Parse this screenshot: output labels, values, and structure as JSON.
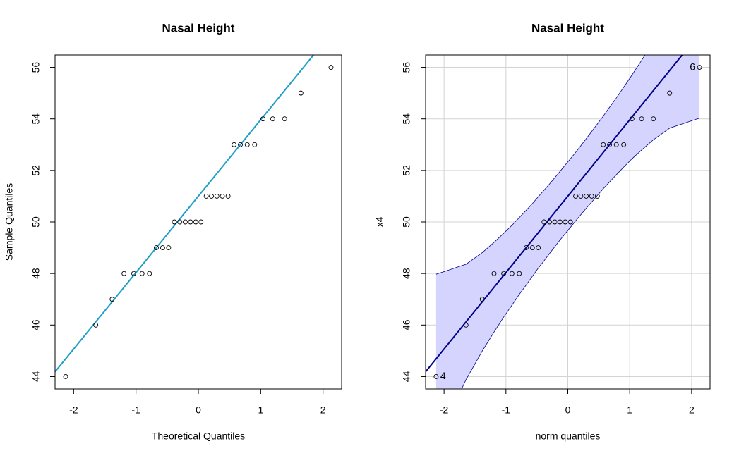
{
  "chart_data": [
    {
      "type": "scatter",
      "title": "Nasal Height",
      "x_label": "Theoretical Quantiles",
      "y_label": "Sample Quantiles",
      "x": [
        -2.128,
        -1.645,
        -1.383,
        -1.192,
        -1.036,
        -0.903,
        -0.784,
        -0.674,
        -0.573,
        -0.477,
        -0.385,
        -0.297,
        -0.21,
        -0.126,
        -0.042,
        0.042,
        0.126,
        0.21,
        0.297,
        0.385,
        0.477,
        0.573,
        0.674,
        0.784,
        0.903,
        1.036,
        1.192,
        1.383,
        1.645,
        2.128
      ],
      "values": [
        44,
        46,
        47,
        48,
        48,
        48,
        48,
        49,
        49,
        49,
        50,
        50,
        50,
        50,
        50,
        50,
        51,
        51,
        51,
        51,
        51,
        53,
        53,
        53,
        53,
        54,
        54,
        54,
        55,
        56
      ],
      "reference_line": {
        "intercept": 51,
        "slope": 2.965,
        "color": "#1e9ec9"
      },
      "xlim": [
        -2.298,
        2.298
      ],
      "ylim": [
        43.52,
        56.48
      ],
      "xticks": [
        -2,
        -1,
        0,
        1,
        2
      ],
      "yticks": [
        44,
        46,
        48,
        50,
        52,
        54,
        56
      ],
      "grid": false
    },
    {
      "type": "scatter",
      "title": "Nasal Height",
      "x_label": "norm quantiles",
      "y_label": "x4",
      "x": [
        -2.128,
        -1.645,
        -1.383,
        -1.192,
        -1.036,
        -0.903,
        -0.784,
        -0.674,
        -0.573,
        -0.477,
        -0.385,
        -0.297,
        -0.21,
        -0.126,
        -0.042,
        0.042,
        0.126,
        0.21,
        0.297,
        0.385,
        0.477,
        0.573,
        0.674,
        0.784,
        0.903,
        1.036,
        1.192,
        1.383,
        1.645,
        2.128
      ],
      "values": [
        44,
        46,
        47,
        48,
        48,
        48,
        48,
        49,
        49,
        49,
        50,
        50,
        50,
        50,
        50,
        50,
        51,
        51,
        51,
        51,
        51,
        53,
        53,
        53,
        53,
        54,
        54,
        54,
        55,
        56
      ],
      "point_labels": [
        "4",
        null,
        null,
        null,
        null,
        null,
        null,
        null,
        null,
        null,
        null,
        null,
        null,
        null,
        null,
        null,
        null,
        null,
        null,
        null,
        null,
        null,
        null,
        null,
        null,
        null,
        null,
        null,
        null,
        "6"
      ],
      "reference_line": {
        "intercept": 51,
        "slope": 2.965,
        "color": "#00008b"
      },
      "envelope": {
        "color": "#d4d4ff",
        "border": "#00008b",
        "lower": [
          41.41,
          43.88,
          44.99,
          45.73,
          46.31,
          46.77,
          47.19,
          47.55,
          47.89,
          48.21,
          48.49,
          48.77,
          49.04,
          49.3,
          49.55,
          49.79,
          50.04,
          50.28,
          50.53,
          50.77,
          51.03,
          51.29,
          51.55,
          51.83,
          52.13,
          52.45,
          52.79,
          53.19,
          53.64,
          54.03
        ],
        "upper": [
          47.97,
          48.36,
          48.81,
          49.21,
          49.56,
          49.87,
          50.17,
          50.45,
          50.71,
          50.98,
          51.23,
          51.47,
          51.72,
          51.96,
          52.21,
          52.45,
          52.7,
          52.96,
          53.23,
          53.51,
          53.8,
          54.11,
          54.45,
          54.81,
          55.23,
          55.7,
          56.27,
          57.01,
          58.12,
          60.59
        ]
      },
      "xlim": [
        -2.298,
        2.298
      ],
      "ylim": [
        43.52,
        56.48
      ],
      "xticks": [
        -2,
        -1,
        0,
        1,
        2
      ],
      "yticks": [
        44,
        46,
        48,
        50,
        52,
        54,
        56
      ],
      "grid": true
    }
  ]
}
